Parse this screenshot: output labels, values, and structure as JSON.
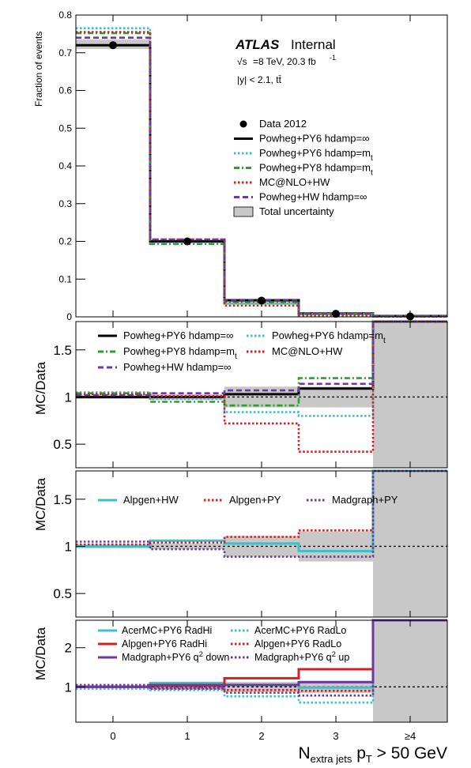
{
  "colors": {
    "black": "#000000",
    "cyan": "#3fbfc8",
    "green": "#2e9e2e",
    "red": "#d42020",
    "purple": "#6a3a9e",
    "band": "#c8c8c8"
  },
  "header": {
    "brand": "ATLAS",
    "status": "Internal",
    "energy_prefix": "√s",
    "energy_text": "=8 TeV, 20.3 fb",
    "energy_sup": "-1",
    "selection": "|y| < 2.1, tt̄"
  },
  "x_axis": {
    "categories": [
      "0",
      "1",
      "2",
      "3",
      "≥4"
    ],
    "label_main": "N",
    "label_sub1": "extra jets",
    "label_p": " p",
    "label_sub2": "T",
    "label_tail": " > 50 GeV"
  },
  "chart_data": [
    {
      "type": "line",
      "panel": "main",
      "ylabel": "Fraction of events",
      "ylim": [
        0,
        0.8
      ],
      "yticks": [
        "0",
        "0.1",
        "0.2",
        "0.3",
        "0.4",
        "0.5",
        "0.6",
        "0.7",
        "0.8"
      ],
      "categories": [
        "0",
        "1",
        "2",
        "3",
        "≥4"
      ],
      "data": {
        "name": "Data 2012",
        "values": [
          0.72,
          0.2,
          0.043,
          0.008,
          0.001
        ]
      },
      "uncertainty": {
        "name": "Total uncertainty",
        "low": [
          0.71,
          0.195,
          0.034,
          0.007,
          0.0
        ],
        "high": [
          0.735,
          0.205,
          0.046,
          0.009,
          0.003
        ]
      },
      "series": [
        {
          "name": "Powheg+PY6 hdamp=∞",
          "values": [
            0.72,
            0.2,
            0.044,
            0.009,
            0.002
          ],
          "color": "black",
          "dash": "solid"
        },
        {
          "name": "Powheg+PY6 hdamp=mt",
          "values": [
            0.765,
            0.195,
            0.035,
            0.007,
            0.001
          ],
          "color": "cyan",
          "dash": "dot"
        },
        {
          "name": "Powheg+PY8 hdamp=mt",
          "values": [
            0.752,
            0.193,
            0.038,
            0.008,
            0.001
          ],
          "color": "green",
          "dash": "dashdot"
        },
        {
          "name": "MC@NLO+HW",
          "values": [
            0.755,
            0.205,
            0.03,
            0.004,
            0.001
          ],
          "color": "red",
          "dash": "dot"
        },
        {
          "name": "Powheg+HW hdamp=∞",
          "values": [
            0.74,
            0.205,
            0.045,
            0.009,
            0.002
          ],
          "color": "purple",
          "dash": "dash"
        }
      ],
      "legend": {
        "placement": "top-right",
        "entries": [
          {
            "label": "Data 2012",
            "sup": "",
            "sub": ""
          },
          {
            "label": "Powheg+PY6 hdamp=∞",
            "sup": "",
            "sub": ""
          },
          {
            "label": "Powheg+PY6 hdamp=m",
            "sup": "",
            "sub": "t"
          },
          {
            "label": "Powheg+PY8 hdamp=m",
            "sup": "",
            "sub": "t"
          },
          {
            "label": "MC@NLO+HW",
            "sup": "",
            "sub": ""
          },
          {
            "label": "Powheg+HW hdamp=∞",
            "sup": "",
            "sub": ""
          },
          {
            "label": "Total uncertainty",
            "sup": "",
            "sub": ""
          }
        ]
      }
    },
    {
      "type": "line",
      "panel": "ratio1",
      "ylabel": "MC/Data",
      "ylim": [
        0.25,
        1.8
      ],
      "yticks": [
        "0.5",
        "1",
        "1.5"
      ],
      "uncertainty": {
        "low": [
          0.98,
          0.97,
          0.89,
          0.89,
          0.0
        ],
        "high": [
          1.02,
          1.03,
          1.11,
          1.11,
          1.8
        ]
      },
      "series": [
        {
          "name": "Powheg+PY6 hdamp=∞",
          "values": [
            1.0,
            1.0,
            1.03,
            1.09,
            1.8
          ],
          "color": "black",
          "dash": "solid"
        },
        {
          "name": "Powheg+PY6 hdamp=mt",
          "values": [
            1.05,
            0.98,
            0.84,
            0.8,
            1.8
          ],
          "color": "cyan",
          "dash": "dot"
        },
        {
          "name": "Powheg+PY8 hdamp=mt",
          "values": [
            1.04,
            0.95,
            0.91,
            1.2,
            1.8
          ],
          "color": "green",
          "dash": "dashdot"
        },
        {
          "name": "MC@NLO+HW",
          "values": [
            1.03,
            1.01,
            0.72,
            0.42,
            1.8
          ],
          "color": "red",
          "dash": "dot"
        },
        {
          "name": "Powheg+HW hdamp=∞",
          "values": [
            1.02,
            1.04,
            1.07,
            1.14,
            1.8
          ],
          "color": "purple",
          "dash": "dash"
        }
      ],
      "legend": {
        "placement": "top",
        "entries": [
          {
            "label": "Powheg+PY6 hdamp=∞",
            "sup": "",
            "sub": ""
          },
          {
            "label": "Powheg+PY6 hdamp=m",
            "sup": "",
            "sub": "t"
          },
          {
            "label": "Powheg+PY8 hdamp=m",
            "sup": "",
            "sub": "t"
          },
          {
            "label": "MC@NLO+HW",
            "sup": "",
            "sub": ""
          },
          {
            "label": "Powheg+HW hdamp=∞",
            "sup": "",
            "sub": ""
          }
        ]
      }
    },
    {
      "type": "line",
      "panel": "ratio2",
      "ylabel": "MC/Data",
      "ylim": [
        0.25,
        1.8
      ],
      "yticks": [
        "0.5",
        "1",
        "1.5"
      ],
      "uncertainty": {
        "low": [
          0.98,
          0.97,
          0.89,
          0.84,
          0.0
        ],
        "high": [
          1.02,
          1.03,
          1.11,
          1.16,
          1.8
        ]
      },
      "series": [
        {
          "name": "Alpgen+HW",
          "values": [
            1.0,
            1.06,
            1.03,
            0.95,
            1.8
          ],
          "color": "cyan",
          "dash": "solid"
        },
        {
          "name": "Alpgen+PY",
          "values": [
            1.02,
            1.04,
            1.1,
            1.17,
            1.8
          ],
          "color": "red",
          "dash": "dot"
        },
        {
          "name": "Madgraph+PY",
          "values": [
            1.05,
            0.97,
            0.89,
            0.89,
            1.8
          ],
          "color": "purple",
          "dash": "dot"
        }
      ],
      "legend": {
        "placement": "top",
        "entries": [
          {
            "label": "Alpgen+HW",
            "sup": "",
            "sub": ""
          },
          {
            "label": "Alpgen+PY",
            "sup": "",
            "sub": ""
          },
          {
            "label": "Madgraph+PY",
            "sup": "",
            "sub": ""
          }
        ]
      }
    },
    {
      "type": "line",
      "panel": "ratio3",
      "ylabel": "MC/Data",
      "ylim": [
        0.1,
        2.7
      ],
      "yticks": [
        "1",
        "2"
      ],
      "uncertainty": {
        "low": [
          0.97,
          0.96,
          0.87,
          0.84,
          0.0
        ],
        "high": [
          1.03,
          1.04,
          1.13,
          1.16,
          2.7
        ]
      },
      "series": [
        {
          "name": "AcerMC+PY6 RadHi",
          "values": [
            1.0,
            1.1,
            1.05,
            0.98,
            2.7
          ],
          "color": "cyan",
          "dash": "solid"
        },
        {
          "name": "AcerMC+PY6 RadLo",
          "values": [
            0.95,
            0.92,
            0.76,
            0.6,
            2.7
          ],
          "color": "cyan",
          "dash": "dot"
        },
        {
          "name": "Alpgen+PY6 RadHi",
          "values": [
            1.0,
            1.05,
            1.22,
            1.45,
            2.7
          ],
          "color": "red",
          "dash": "solid"
        },
        {
          "name": "Alpgen+PY6 RadLo",
          "values": [
            1.0,
            0.97,
            0.92,
            0.9,
            2.7
          ],
          "color": "red",
          "dash": "dot"
        },
        {
          "name": "Madgraph+PY6 q² down",
          "values": [
            1.0,
            1.03,
            1.05,
            1.12,
            2.7
          ],
          "color": "purple",
          "dash": "solid"
        },
        {
          "name": "Madgraph+PY6 q² up",
          "values": [
            1.05,
            0.95,
            0.85,
            0.78,
            2.7
          ],
          "color": "purple",
          "dash": "dot"
        }
      ],
      "legend": {
        "placement": "top",
        "entries": [
          {
            "label": "AcerMC+PY6 RadHi",
            "sup": "",
            "sub": ""
          },
          {
            "label": "AcerMC+PY6 RadLo",
            "sup": "",
            "sub": ""
          },
          {
            "label": "Alpgen+PY6 RadHi",
            "sup": "",
            "sub": ""
          },
          {
            "label": "Alpgen+PY6 RadLo",
            "sup": "",
            "sub": ""
          },
          {
            "label": "Madgraph+PY6 q",
            "sup": "2",
            "sub": "",
            "tail": " down"
          },
          {
            "label": "Madgraph+PY6 q",
            "sup": "2",
            "sub": "",
            "tail": " up"
          }
        ]
      }
    }
  ]
}
